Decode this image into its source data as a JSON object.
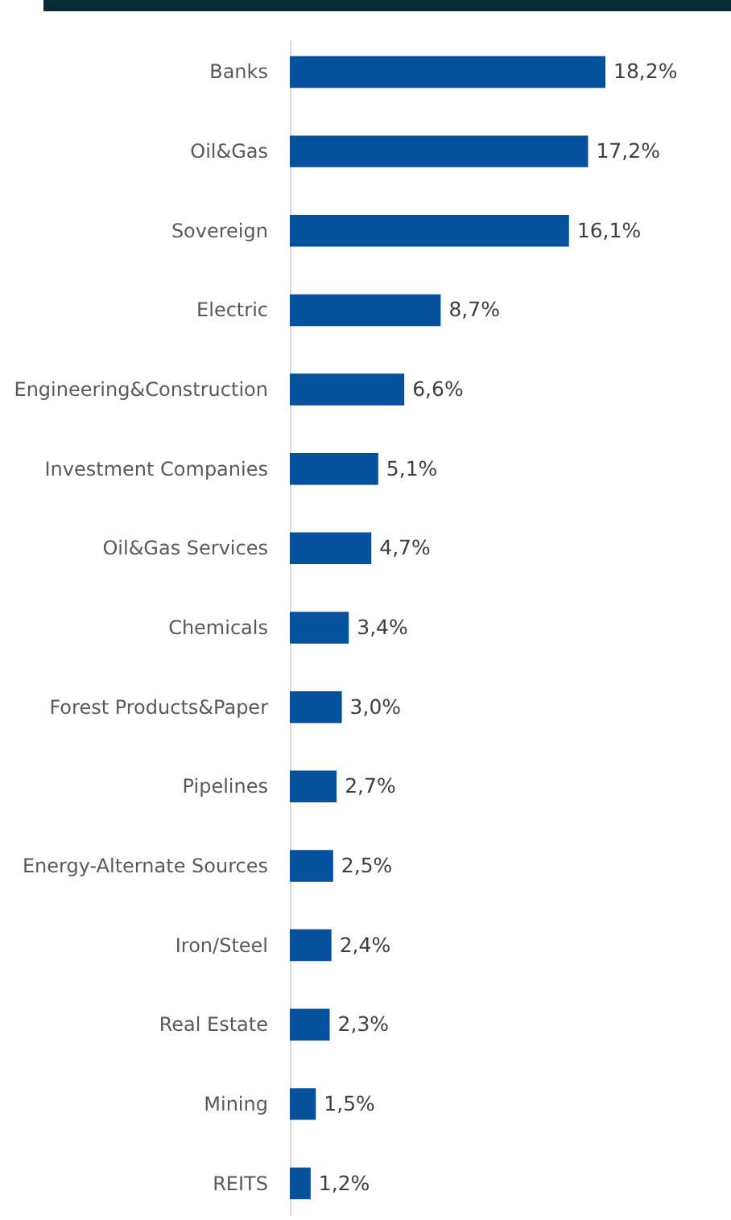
{
  "chart_data": {
    "type": "bar",
    "orientation": "horizontal",
    "color": "#05519e",
    "categories": [
      "Banks",
      "Oil&Gas",
      "Sovereign",
      "Electric",
      "Engineering&Construction",
      "Investment Companies",
      "Oil&Gas Services",
      "Chemicals",
      "Forest Products&Paper",
      "Pipelines",
      "Energy-Alternate Sources",
      "Iron/Steel",
      "Real Estate",
      "Mining",
      "REITS"
    ],
    "values": [
      18.2,
      17.2,
      16.1,
      8.7,
      6.6,
      5.1,
      4.7,
      3.4,
      3.0,
      2.7,
      2.5,
      2.4,
      2.3,
      1.5,
      1.2
    ],
    "value_labels": [
      "18,2%",
      "17,2%",
      "16,1%",
      "8,7%",
      "6,6%",
      "5,1%",
      "4,7%",
      "3,4%",
      "3,0%",
      "2,7%",
      "2,5%",
      "2,4%",
      "2,3%",
      "1,5%",
      "1,2%"
    ],
    "grid": false
  }
}
